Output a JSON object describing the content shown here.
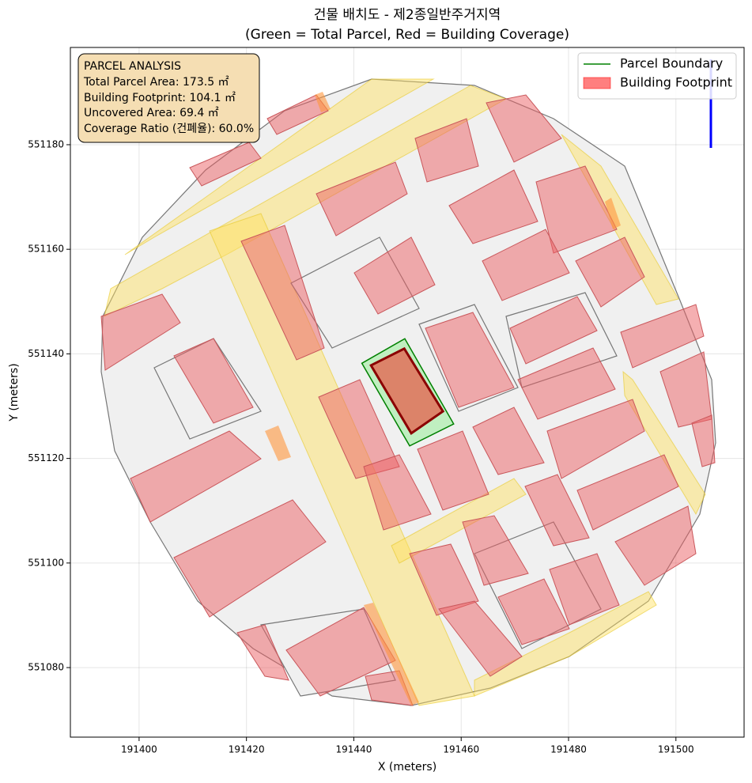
{
  "chart_data": {
    "type": "map",
    "title": "건물 배치도 - 제2종일반주거지역",
    "subtitle": "(Green = Total Parcel, Red = Building Coverage)",
    "x_label": "X (meters)",
    "y_label": "Y (meters)",
    "xlim": [
      191387.2,
      191512.7
    ],
    "ylim": [
      551066.7,
      551198.6
    ],
    "xticks": [
      191400,
      191420,
      191440,
      191460,
      191480,
      191500
    ],
    "yticks": [
      551080,
      551100,
      551120,
      551140,
      551160,
      551180
    ],
    "grid": true,
    "legend": "upper right",
    "series": [
      {
        "name": "Parcel Boundary",
        "color": "#008000",
        "fill": "#90ee90",
        "x": [
          191441.5,
          191449.5,
          191458.6,
          191450.4
        ],
        "y": [
          551138.2,
          551142.9,
          551126.6,
          551122.4
        ]
      },
      {
        "name": "Building Footprint",
        "color": "#8b0000",
        "fill": "#ff0000",
        "x": [
          191443.2,
          191449.4,
          191456.6,
          191450.7
        ],
        "y": [
          551137.8,
          551141.0,
          551129.0,
          551124.8
        ]
      }
    ],
    "annotations": [
      "PARCEL ANALYSIS",
      "Total Parcel Area: 173.5 ㎡",
      "Building Footprint: 104.1 ㎡",
      "Uncovered Area: 69.4 ㎡",
      "Coverage Ratio (건폐율): 60.0%"
    ]
  }
}
